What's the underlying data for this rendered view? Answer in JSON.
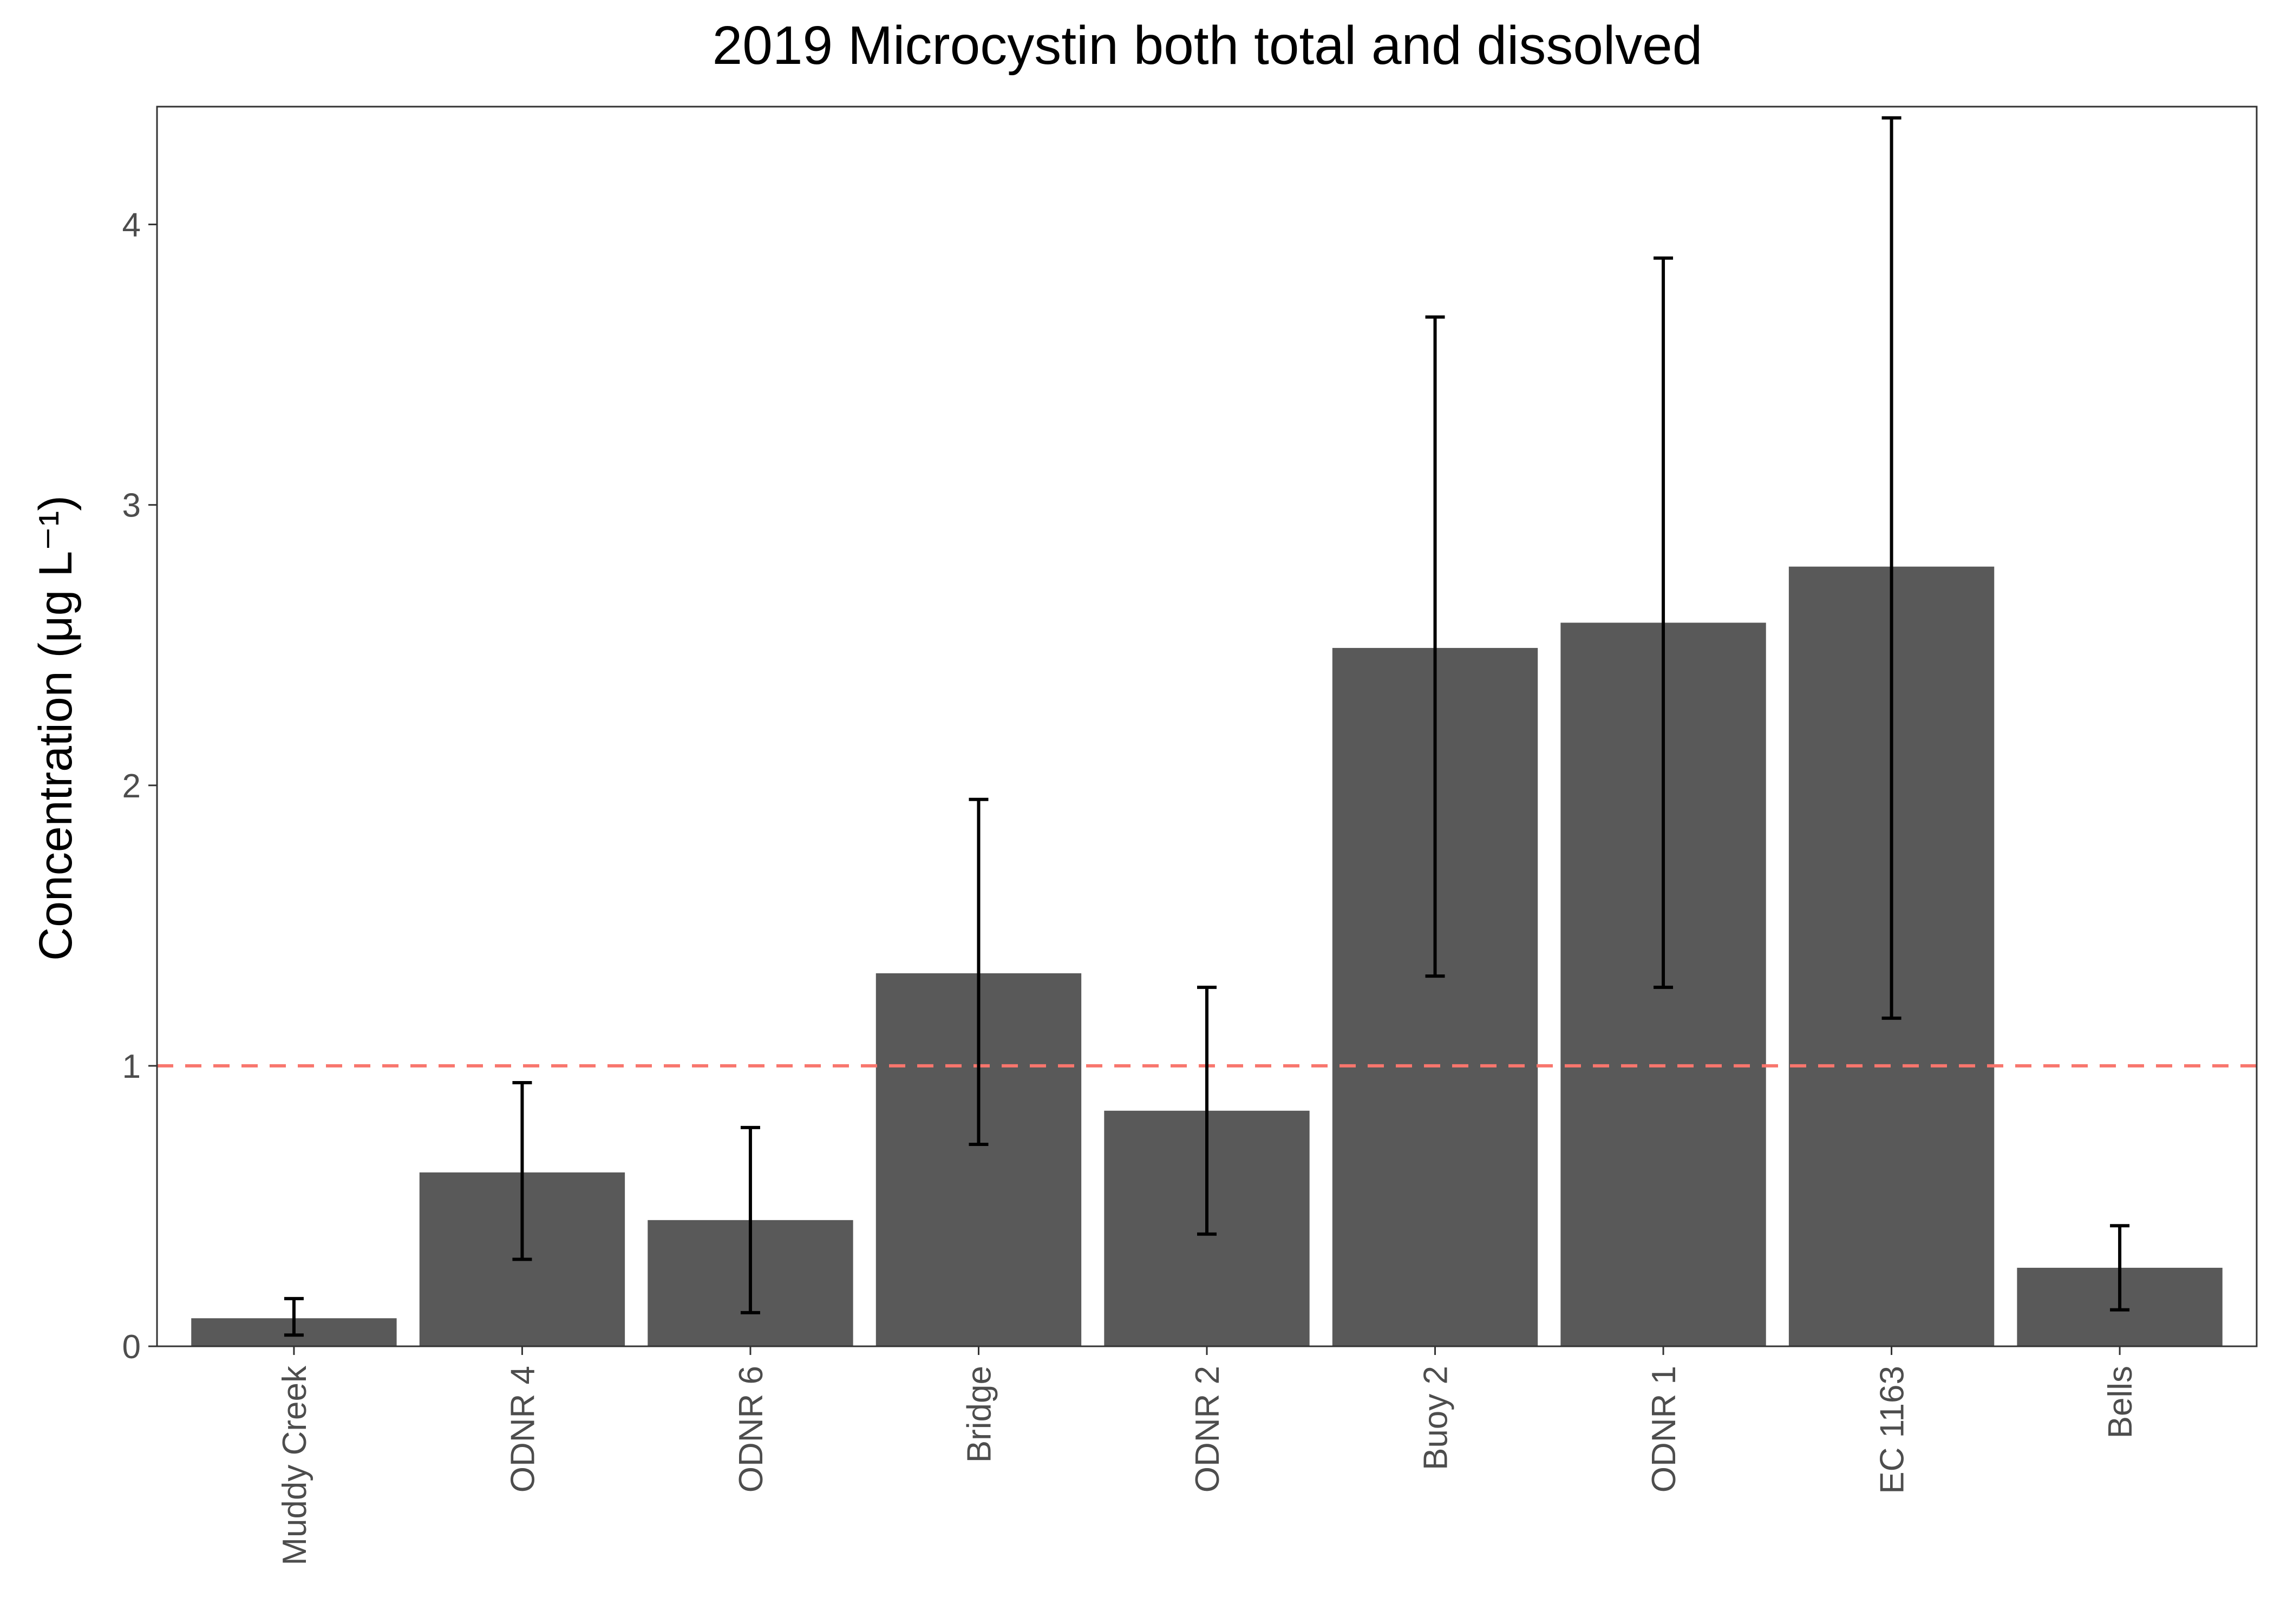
{
  "chart_data": {
    "type": "bar",
    "title": "2019 Microcystin both total and dissolved",
    "xlabel": "",
    "ylabel": "Concentration (μg L⁻¹)",
    "categories": [
      "Muddy Creek",
      "ODNR 4",
      "ODNR 6",
      "Bridge",
      "ODNR 2",
      "Buoy 2",
      "ODNR 1",
      "EC 1163",
      "Bells"
    ],
    "values": [
      0.1,
      0.62,
      0.45,
      1.33,
      0.84,
      2.49,
      2.58,
      2.78,
      0.28
    ],
    "error_low": [
      0.04,
      0.31,
      0.12,
      0.72,
      0.4,
      1.32,
      1.28,
      1.17,
      0.13
    ],
    "error_high": [
      0.17,
      0.94,
      0.78,
      1.95,
      1.28,
      3.67,
      3.88,
      4.38,
      0.43
    ],
    "ylim": [
      0,
      4.42
    ],
    "yticks": [
      0,
      1,
      2,
      3,
      4
    ],
    "reference_line": {
      "y": 1,
      "style": "dashed",
      "color": "#f8766d"
    },
    "bar_color": "#595959",
    "grid": false,
    "legend": "none"
  }
}
